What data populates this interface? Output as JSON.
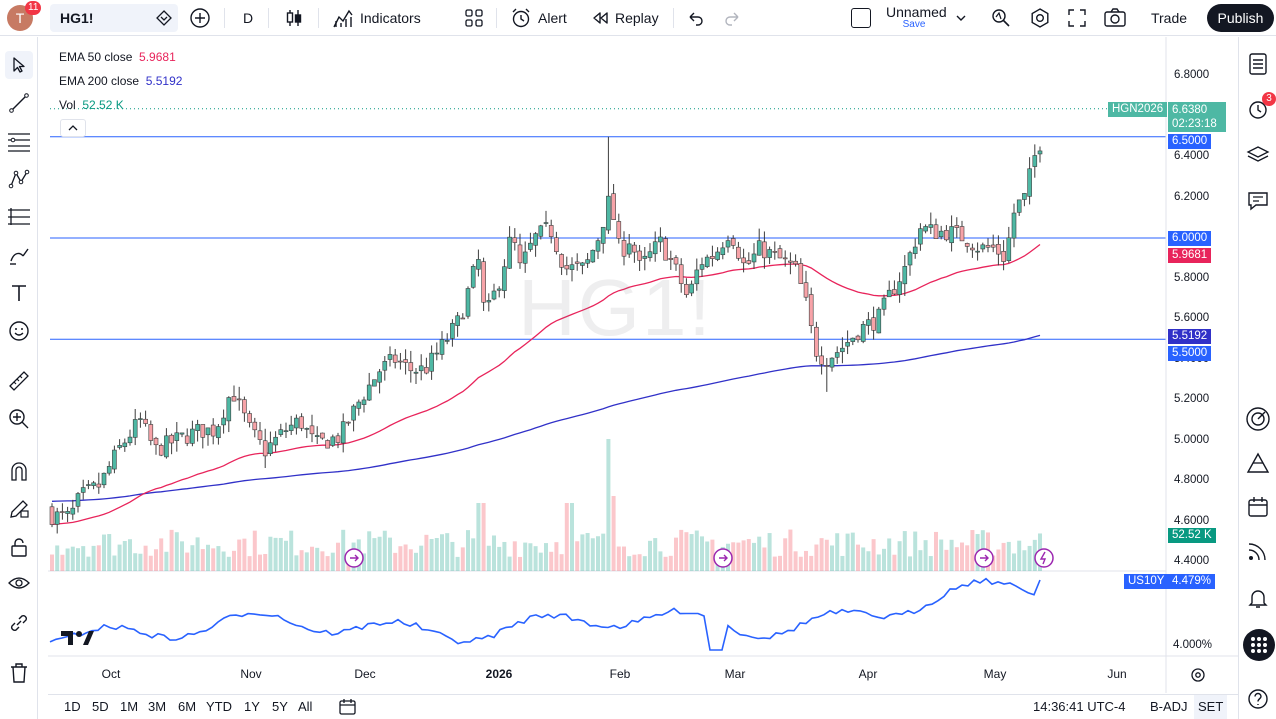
{
  "header": {
    "avatar_letter": "T",
    "notif_count": "11",
    "symbol": "HG1!",
    "interval": "D",
    "indicators_label": "Indicators",
    "alert_label": "Alert",
    "replay_label": "Replay",
    "layout_name": "Unnamed",
    "layout_save": "Save",
    "trade_label": "Trade",
    "publish_label": "Publish"
  },
  "legend": {
    "ema50_label": "EMA 50 close",
    "ema50_value": "5.9681",
    "ema200_label": "EMA 200 close",
    "ema200_value": "5.5192",
    "vol_label": "Vol",
    "vol_value": "52.52 K"
  },
  "watermark": "HG1!",
  "price_axis": [
    "6.8000",
    "6.4000",
    "6.2000",
    "5.8000",
    "5.6000",
    "5.4000",
    "5.2000",
    "5.0000",
    "4.8000",
    "4.6000",
    "4.4000"
  ],
  "price_labels": {
    "contract": "HGN2026",
    "last_price": "6.6380",
    "countdown": "02:23:18",
    "line_650": "6.5000",
    "line_600": "6.0000",
    "ema50": "5.9681",
    "ema200": "5.5192",
    "line_550": "5.5000",
    "vol": "52.52 K"
  },
  "sub_pane": {
    "symbol": "US10Y",
    "value": "4.479%",
    "axis_label": "4.000%"
  },
  "time_axis": [
    "Oct",
    "Nov",
    "Dec",
    "2026",
    "Feb",
    "Mar",
    "Apr",
    "May",
    "Jun"
  ],
  "bottom": {
    "ranges": [
      "1D",
      "5D",
      "1M",
      "3M",
      "6M",
      "YTD",
      "1Y",
      "5Y",
      "All"
    ],
    "time": "14:36:41 UTC-4",
    "badj": "B-ADJ",
    "set": "SET"
  },
  "right_rail_badge": "3",
  "chart_data": {
    "type": "candlestick",
    "symbol": "HG1!",
    "y_range": [
      4.34,
      6.88
    ],
    "horizontal_lines": [
      6.5,
      6.0,
      5.5
    ],
    "ema50_last": 5.9681,
    "ema200_last": 5.5192,
    "last": 6.638,
    "colors": {
      "up": "#089981",
      "down": "#f23645",
      "ema50": "#e8245b",
      "ema200": "#3131c8",
      "hline": "#2962ff",
      "us10y": "#2962ff"
    }
  }
}
